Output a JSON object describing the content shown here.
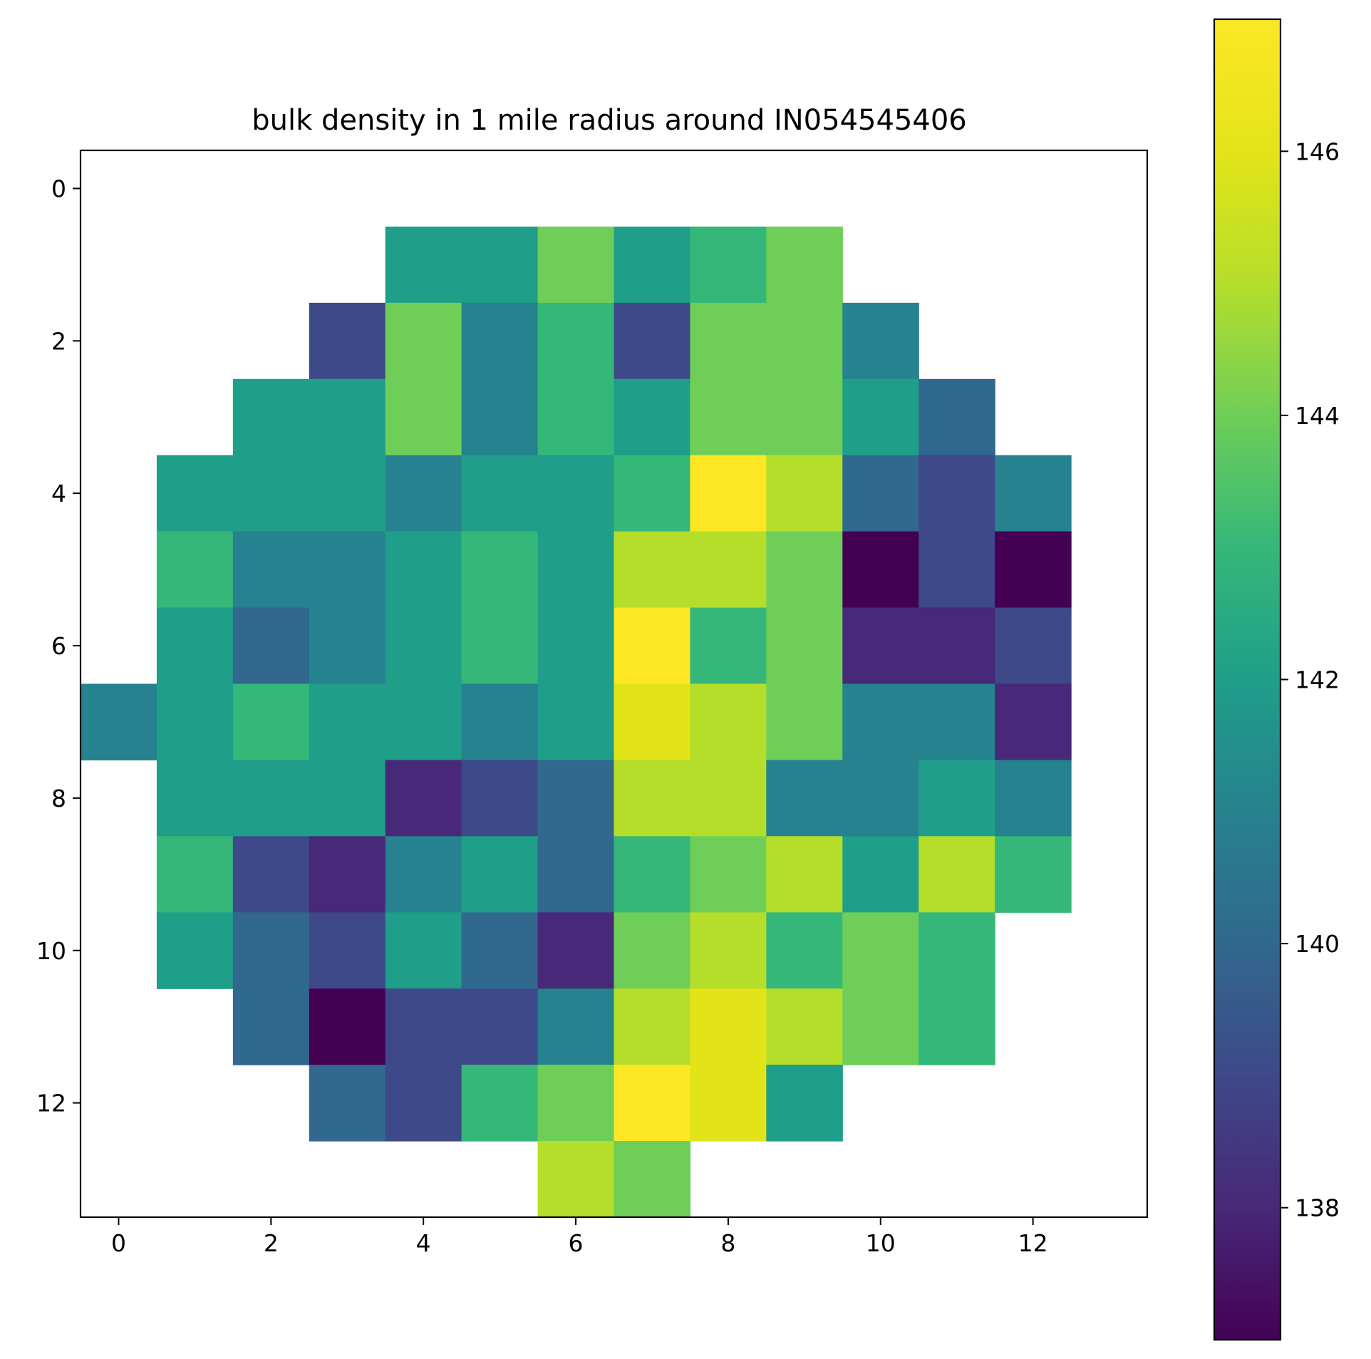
{
  "chart_data": {
    "type": "heatmap",
    "title": "bulk density in 1 mile radius around IN054545406",
    "xlabel": "",
    "ylabel": "",
    "x_ticks": [
      "0",
      "2",
      "4",
      "6",
      "8",
      "10",
      "12"
    ],
    "y_ticks": [
      "0",
      "2",
      "4",
      "6",
      "8",
      "10",
      "12"
    ],
    "colorbar_ticks": [
      "138",
      "140",
      "142",
      "144",
      "146"
    ],
    "colormap": "viridis",
    "vmin": 137.0,
    "vmax": 147.0,
    "grid": false,
    "values": [
      [
        null,
        null,
        null,
        null,
        null,
        null,
        null,
        null,
        null,
        null,
        null,
        null,
        null,
        null
      ],
      [
        null,
        null,
        null,
        null,
        142.0,
        142.0,
        144.0,
        142.0,
        143.0,
        144.0,
        null,
        null,
        null,
        null
      ],
      [
        null,
        null,
        null,
        139.0,
        144.0,
        141.0,
        143.0,
        139.0,
        144.0,
        144.0,
        141.0,
        null,
        null,
        null
      ],
      [
        null,
        null,
        142.0,
        142.0,
        144.0,
        141.0,
        143.0,
        142.0,
        144.0,
        144.0,
        142.0,
        140.0,
        null,
        null
      ],
      [
        null,
        142.0,
        142.0,
        142.0,
        141.0,
        142.0,
        142.0,
        143.0,
        147.0,
        145.0,
        140.0,
        139.0,
        141.0,
        null
      ],
      [
        null,
        143.0,
        141.0,
        141.0,
        142.0,
        143.0,
        142.0,
        145.0,
        145.0,
        144.0,
        137.0,
        139.0,
        137.0,
        null
      ],
      [
        null,
        142.0,
        140.0,
        141.0,
        142.0,
        143.0,
        142.0,
        147.0,
        143.0,
        144.0,
        138.0,
        138.0,
        139.0,
        null
      ],
      [
        141.0,
        142.0,
        143.0,
        142.0,
        142.0,
        141.0,
        142.0,
        146.0,
        145.0,
        144.0,
        141.0,
        141.0,
        138.0,
        null
      ],
      [
        null,
        142.0,
        142.0,
        142.0,
        138.0,
        139.0,
        140.0,
        145.0,
        145.0,
        141.0,
        141.0,
        142.0,
        141.0,
        null
      ],
      [
        null,
        143.0,
        139.0,
        138.0,
        141.0,
        142.0,
        140.0,
        143.0,
        144.0,
        145.0,
        142.0,
        145.0,
        143.0,
        null
      ],
      [
        null,
        142.0,
        140.0,
        139.0,
        142.0,
        140.0,
        138.0,
        144.0,
        145.0,
        143.0,
        144.0,
        143.0,
        null,
        null
      ],
      [
        null,
        null,
        140.0,
        137.0,
        139.0,
        139.0,
        141.0,
        145.0,
        146.0,
        145.0,
        144.0,
        143.0,
        null,
        null
      ],
      [
        null,
        null,
        null,
        140.0,
        139.0,
        143.0,
        144.0,
        147.0,
        146.0,
        142.0,
        null,
        null,
        null,
        null
      ],
      [
        null,
        null,
        null,
        null,
        null,
        null,
        145.0,
        144.0,
        null,
        null,
        null,
        null,
        null,
        null
      ]
    ]
  }
}
